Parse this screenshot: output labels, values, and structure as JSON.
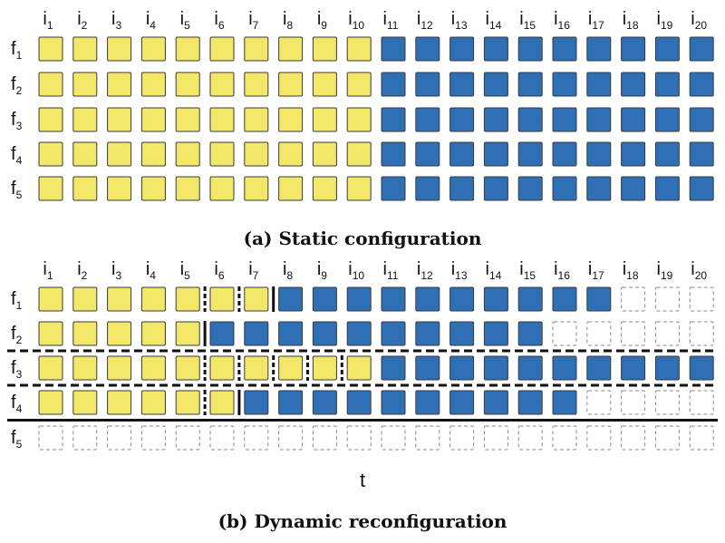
{
  "colors": {
    "yellow": "#f3e769",
    "blue": "#2e6fb5",
    "stroke": "#3a3a3a",
    "empty": "#8a8a8a",
    "rule": "#111111"
  },
  "columns": {
    "prefix": "i",
    "subscripts": [
      "1",
      "2",
      "3",
      "4",
      "5",
      "6",
      "7",
      "8",
      "9",
      "10",
      "11",
      "12",
      "13",
      "14",
      "15",
      "16",
      "17",
      "18",
      "19",
      "20"
    ]
  },
  "rows": {
    "prefix": "f",
    "subscripts": [
      "1",
      "2",
      "3",
      "4",
      "5"
    ]
  },
  "panel_a": {
    "caption": "(a) Static configuration",
    "grid": [
      "YYYYYYYYYYBBBBBBBBBB",
      "YYYYYYYYYYBBBBBBBBBB",
      "YYYYYYYYYYBBBBBBBBBB",
      "YYYYYYYYYYBBBBBBBBBB",
      "YYYYYYYYYYBBBBBBBBBB"
    ]
  },
  "panel_b": {
    "caption": "(b) Dynamic reconfiguration",
    "time_label": "t",
    "grid": [
      "YYYYYYYBBBBBBBBBBEEE",
      "YYYYYBBBBBBBBBBEEEEE",
      "YYYYYYYYYYBBBBBBBBBB",
      "YYYYYYBBBBBBBBBBEEEE",
      "EEEEEEEEEEEEEEEEEEEE"
    ],
    "dashed_separators": [
      [
        0,
        5
      ],
      [
        0,
        6
      ],
      [
        2,
        5
      ],
      [
        2,
        6
      ],
      [
        2,
        7
      ],
      [
        2,
        8
      ],
      [
        2,
        9
      ],
      [
        3,
        5
      ]
    ],
    "solid_separators": [
      [
        0,
        7
      ],
      [
        1,
        5
      ],
      [
        3,
        6
      ]
    ],
    "dashed_row_rules": [
      2,
      3
    ],
    "solid_row_rules": [
      4
    ]
  }
}
